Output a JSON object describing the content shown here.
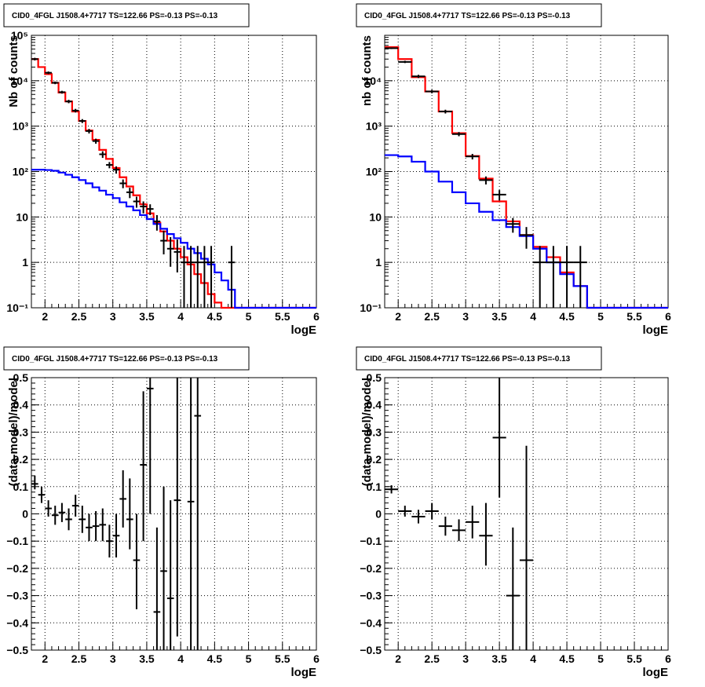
{
  "chart_data": [
    {
      "id": "tl",
      "type": "step",
      "title": "CID0_4FGL J1508.4+7717 TS=122.66 PS=-0.13 PS=-0.13",
      "xlabel": "logE",
      "ylabel": "Nb of counts",
      "xlim": [
        1.8,
        6.0
      ],
      "ylim": [
        0.1,
        100000
      ],
      "yscale": "log",
      "grid": true,
      "xticks": [
        "2",
        "2.5",
        "3",
        "3.5",
        "4",
        "4.5",
        "5",
        "5.5",
        "6"
      ],
      "yticks": [
        "10⁻¹",
        "1",
        "10",
        "10²",
        "10³",
        "10⁴",
        "10⁵"
      ],
      "bin_edges": [
        1.8,
        1.9,
        2.0,
        2.1,
        2.2,
        2.3,
        2.4,
        2.5,
        2.6,
        2.7,
        2.8,
        2.9,
        3.0,
        3.1,
        3.2,
        3.3,
        3.4,
        3.5,
        3.6,
        3.7,
        3.8,
        3.9,
        4.0,
        4.1,
        4.2,
        4.3,
        4.4,
        4.5,
        4.6,
        4.7,
        4.8,
        4.9,
        5.0,
        5.1,
        5.2,
        5.3,
        5.4,
        5.5,
        5.6,
        5.7,
        5.8,
        5.9,
        6.0
      ],
      "series": [
        {
          "color": "#ff0000",
          "values": [
            30000,
            20000,
            14000,
            9000,
            5500,
            3500,
            2100,
            1300,
            800,
            500,
            300,
            190,
            120,
            75,
            47,
            30,
            19,
            12,
            7.5,
            4.8,
            3.0,
            2.0,
            1.3,
            0.9,
            0.55,
            0.35,
            0.2,
            0.13,
            0.1,
            0.1,
            0.1,
            0.1,
            0.1,
            0.1,
            0.1,
            0.1,
            0.1,
            0.1,
            0.1,
            0.1,
            0.1,
            0.1
          ]
        },
        {
          "color": "#0000ff",
          "values": [
            110,
            110,
            108,
            104,
            95,
            85,
            75,
            65,
            55,
            45,
            38,
            31,
            26,
            21,
            17,
            14,
            11,
            9,
            7,
            5.5,
            4.2,
            3.4,
            2.7,
            2.0,
            1.6,
            1.2,
            0.9,
            0.6,
            0.4,
            0.25,
            0.1,
            0.1,
            0.1,
            0.1,
            0.1,
            0.1,
            0.1,
            0.1,
            0.1,
            0.1,
            0.1,
            0.1
          ]
        }
      ],
      "points": [
        {
          "x": 1.85,
          "y": 30000,
          "lo": 28000,
          "hi": 32000,
          "xerr": 0.05
        },
        {
          "x": 2.05,
          "y": 15000,
          "lo": 14000,
          "hi": 16000,
          "xerr": 0.05
        },
        {
          "x": 2.15,
          "y": 9000,
          "lo": 8400,
          "hi": 9600,
          "xerr": 0.05
        },
        {
          "x": 2.25,
          "y": 5600,
          "lo": 5200,
          "hi": 6000,
          "xerr": 0.05
        },
        {
          "x": 2.35,
          "y": 3500,
          "lo": 3200,
          "hi": 3800,
          "xerr": 0.05
        },
        {
          "x": 2.45,
          "y": 2200,
          "lo": 2000,
          "hi": 2400,
          "xerr": 0.05
        },
        {
          "x": 2.55,
          "y": 1300,
          "lo": 1170,
          "hi": 1430,
          "xerr": 0.05
        },
        {
          "x": 2.65,
          "y": 780,
          "lo": 690,
          "hi": 870,
          "xerr": 0.05
        },
        {
          "x": 2.75,
          "y": 470,
          "lo": 410,
          "hi": 530,
          "xerr": 0.05
        },
        {
          "x": 2.85,
          "y": 240,
          "lo": 200,
          "hi": 280,
          "xerr": 0.05
        },
        {
          "x": 2.95,
          "y": 140,
          "lo": 118,
          "hi": 162,
          "xerr": 0.05
        },
        {
          "x": 3.05,
          "y": 110,
          "lo": 90,
          "hi": 130,
          "xerr": 0.05
        },
        {
          "x": 3.15,
          "y": 55,
          "lo": 43,
          "hi": 67,
          "xerr": 0.05
        },
        {
          "x": 3.25,
          "y": 35,
          "lo": 26,
          "hi": 44,
          "xerr": 0.05
        },
        {
          "x": 3.35,
          "y": 22,
          "lo": 16,
          "hi": 28,
          "xerr": 0.05
        },
        {
          "x": 3.45,
          "y": 17,
          "lo": 12,
          "hi": 22,
          "xerr": 0.05
        },
        {
          "x": 3.55,
          "y": 15,
          "lo": 11,
          "hi": 19,
          "xerr": 0.05
        },
        {
          "x": 3.65,
          "y": 8,
          "lo": 5,
          "hi": 11,
          "xerr": 0.05
        },
        {
          "x": 3.75,
          "y": 3,
          "lo": 1.5,
          "hi": 5,
          "xerr": 0.05
        },
        {
          "x": 3.85,
          "y": 2,
          "lo": 0.8,
          "hi": 3.6,
          "xerr": 0.05
        },
        {
          "x": 3.95,
          "y": 1.7,
          "lo": 0.6,
          "hi": 3.2,
          "xerr": 0.05
        },
        {
          "x": 4.05,
          "y": 1,
          "lo": 0.1,
          "hi": 2.3,
          "xerr": 0.05
        },
        {
          "x": 4.15,
          "y": 1,
          "lo": 0.1,
          "hi": 2.3,
          "xerr": 0.05
        },
        {
          "x": 4.25,
          "y": 1,
          "lo": 0.1,
          "hi": 2.3,
          "xerr": 0.05
        },
        {
          "x": 4.35,
          "y": 1,
          "lo": 0.1,
          "hi": 2.3,
          "xerr": 0.05
        },
        {
          "x": 4.45,
          "y": 1,
          "lo": 0.1,
          "hi": 2.3,
          "xerr": 0.05
        },
        {
          "x": 4.75,
          "y": 1,
          "lo": 0.1,
          "hi": 2.3,
          "xerr": 0.05
        }
      ]
    },
    {
      "id": "tr",
      "type": "step",
      "title": "CID0_4FGL J1508.4+7717 TS=122.66 PS=-0.13 PS=-0.13",
      "xlabel": "logE",
      "ylabel": "nb of counts",
      "xlim": [
        1.8,
        6.0
      ],
      "ylim": [
        0.1,
        100000
      ],
      "yscale": "log",
      "grid": true,
      "xticks": [
        "2",
        "2.5",
        "3",
        "3.5",
        "4",
        "4.5",
        "5",
        "5.5",
        "6"
      ],
      "yticks": [
        "10⁻¹",
        "1",
        "10",
        "10²",
        "10³",
        "10⁴"
      ],
      "bin_edges": [
        1.8,
        2.0,
        2.2,
        2.4,
        2.6,
        2.8,
        3.0,
        3.2,
        3.4,
        3.6,
        3.8,
        4.0,
        4.2,
        4.4,
        4.6,
        4.8,
        5.0,
        5.2,
        5.4,
        5.6,
        5.8,
        6.0
      ],
      "series": [
        {
          "color": "#ff0000",
          "values": [
            55000,
            30000,
            12000,
            5800,
            2100,
            700,
            220,
            70,
            22,
            8,
            4,
            2.2,
            1.3,
            0.6,
            0.3,
            0.1,
            0.1,
            0.1,
            0.1,
            0.1,
            0.1
          ]
        },
        {
          "color": "#0000ff",
          "values": [
            230,
            215,
            165,
            100,
            60,
            35,
            20,
            13,
            8.5,
            6,
            3.8,
            2.0,
            1.0,
            0.55,
            0.3,
            0.1,
            0.1,
            0.1,
            0.1,
            0.1,
            0.1
          ]
        }
      ],
      "points": [
        {
          "x": 1.9,
          "y": 52000,
          "lo": 50000,
          "hi": 54000,
          "xerr": 0.1
        },
        {
          "x": 2.1,
          "y": 26000,
          "lo": 24500,
          "hi": 27500,
          "xerr": 0.1
        },
        {
          "x": 2.3,
          "y": 12500,
          "lo": 11500,
          "hi": 13500,
          "xerr": 0.1
        },
        {
          "x": 2.5,
          "y": 5800,
          "lo": 5300,
          "hi": 6300,
          "xerr": 0.1
        },
        {
          "x": 2.7,
          "y": 2100,
          "lo": 1900,
          "hi": 2300,
          "xerr": 0.1
        },
        {
          "x": 2.9,
          "y": 670,
          "lo": 600,
          "hi": 740,
          "xerr": 0.1
        },
        {
          "x": 3.1,
          "y": 215,
          "lo": 185,
          "hi": 245,
          "xerr": 0.1
        },
        {
          "x": 3.3,
          "y": 65,
          "lo": 52,
          "hi": 78,
          "xerr": 0.1
        },
        {
          "x": 3.5,
          "y": 31,
          "lo": 23,
          "hi": 39,
          "xerr": 0.1
        },
        {
          "x": 3.7,
          "y": 7,
          "lo": 4.5,
          "hi": 9.5,
          "xerr": 0.1
        },
        {
          "x": 3.9,
          "y": 4,
          "lo": 2,
          "hi": 6,
          "xerr": 0.1
        },
        {
          "x": 4.1,
          "y": 1,
          "lo": 0.1,
          "hi": 2.3,
          "xerr": 0.1
        },
        {
          "x": 4.3,
          "y": 1,
          "lo": 0.1,
          "hi": 2.3,
          "xerr": 0.1
        },
        {
          "x": 4.5,
          "y": 1,
          "lo": 0.1,
          "hi": 2.3,
          "xerr": 0.1
        },
        {
          "x": 4.7,
          "y": 1,
          "lo": 0.1,
          "hi": 2.3,
          "xerr": 0.1
        }
      ]
    },
    {
      "id": "bl",
      "type": "errorbar",
      "title": "CID0_4FGL J1508.4+7717 TS=122.66 PS=-0.13 PS=-0.13",
      "xlabel": "logE",
      "ylabel": "(data-model)/model",
      "xlim": [
        1.8,
        6.0
      ],
      "ylim": [
        -0.5,
        0.5
      ],
      "yscale": "linear",
      "grid": true,
      "xticks": [
        "2",
        "2.5",
        "3",
        "3.5",
        "4",
        "4.5",
        "5",
        "5.5",
        "6"
      ],
      "yticks": [
        "−0.5",
        "−0.4",
        "−0.3",
        "−0.2",
        "−0.1",
        "0",
        "0.1",
        "0.2",
        "0.3",
        "0.4",
        "0.5"
      ],
      "points": [
        {
          "x": 1.85,
          "y": 0.11,
          "lo": 0.09,
          "hi": 0.14,
          "xerr": 0.05
        },
        {
          "x": 1.95,
          "y": 0.07,
          "lo": 0.04,
          "hi": 0.1,
          "xerr": 0.05
        },
        {
          "x": 2.05,
          "y": 0.02,
          "lo": -0.01,
          "hi": 0.05,
          "xerr": 0.05
        },
        {
          "x": 2.15,
          "y": -0.005,
          "lo": -0.04,
          "hi": 0.03,
          "xerr": 0.05
        },
        {
          "x": 2.25,
          "y": 0.005,
          "lo": -0.03,
          "hi": 0.04,
          "xerr": 0.05
        },
        {
          "x": 2.35,
          "y": -0.02,
          "lo": -0.06,
          "hi": 0.02,
          "xerr": 0.05
        },
        {
          "x": 2.45,
          "y": 0.03,
          "lo": -0.01,
          "hi": 0.07,
          "xerr": 0.05
        },
        {
          "x": 2.55,
          "y": -0.02,
          "lo": -0.07,
          "hi": 0.03,
          "xerr": 0.05
        },
        {
          "x": 2.65,
          "y": -0.05,
          "lo": -0.1,
          "hi": 0.0,
          "xerr": 0.05
        },
        {
          "x": 2.75,
          "y": -0.045,
          "lo": -0.1,
          "hi": 0.01,
          "xerr": 0.05
        },
        {
          "x": 2.85,
          "y": -0.04,
          "lo": -0.1,
          "hi": 0.02,
          "xerr": 0.05
        },
        {
          "x": 2.95,
          "y": -0.1,
          "lo": -0.16,
          "hi": -0.04,
          "xerr": 0.05
        },
        {
          "x": 3.05,
          "y": -0.08,
          "lo": -0.16,
          "hi": 0.0,
          "xerr": 0.05
        },
        {
          "x": 3.15,
          "y": 0.055,
          "lo": -0.05,
          "hi": 0.16,
          "xerr": 0.05
        },
        {
          "x": 3.25,
          "y": -0.02,
          "lo": -0.13,
          "hi": 0.13,
          "xerr": 0.05
        },
        {
          "x": 3.35,
          "y": -0.17,
          "lo": -0.35,
          "hi": 0.0,
          "xerr": 0.05
        },
        {
          "x": 3.45,
          "y": 0.18,
          "lo": -0.1,
          "hi": 0.45,
          "xerr": 0.05
        },
        {
          "x": 3.55,
          "y": 0.46,
          "lo": 0.0,
          "hi": 0.5,
          "xerr": 0.05
        },
        {
          "x": 3.65,
          "y": -0.36,
          "lo": -0.5,
          "hi": -0.05,
          "xerr": 0.05
        },
        {
          "x": 3.75,
          "y": -0.21,
          "lo": -0.5,
          "hi": 0.1,
          "xerr": 0.05
        },
        {
          "x": 3.85,
          "y": -0.31,
          "lo": -0.5,
          "hi": 0.05,
          "xerr": 0.05
        },
        {
          "x": 3.95,
          "y": 0.05,
          "lo": -0.45,
          "hi": 0.5,
          "xerr": 0.05
        },
        {
          "x": 4.15,
          "y": 0.045,
          "lo": -0.5,
          "hi": 0.5,
          "xerr": 0.05
        },
        {
          "x": 4.25,
          "y": 0.36,
          "lo": -0.5,
          "hi": 0.5,
          "xerr": 0.05
        }
      ]
    },
    {
      "id": "br",
      "type": "errorbar",
      "title": "CID0_4FGL J1508.4+7717 TS=122.66 PS=-0.13 PS=-0.13",
      "xlabel": "logE",
      "ylabel": "(data-model)/model",
      "xlim": [
        1.8,
        6.0
      ],
      "ylim": [
        -0.5,
        0.5
      ],
      "yscale": "linear",
      "grid": true,
      "xticks": [
        "2",
        "2.5",
        "3",
        "3.5",
        "4",
        "4.5",
        "5",
        "5.5",
        "6"
      ],
      "yticks": [
        "−0.5",
        "−0.4",
        "−0.3",
        "−0.2",
        "−0.1",
        "0",
        "0.1",
        "0.2",
        "0.3",
        "0.4",
        "0.5"
      ],
      "points": [
        {
          "x": 1.9,
          "y": 0.09,
          "lo": 0.075,
          "hi": 0.105,
          "xerr": 0.1
        },
        {
          "x": 2.1,
          "y": 0.01,
          "lo": -0.01,
          "hi": 0.03,
          "xerr": 0.1
        },
        {
          "x": 2.3,
          "y": -0.01,
          "lo": -0.035,
          "hi": 0.015,
          "xerr": 0.1
        },
        {
          "x": 2.5,
          "y": 0.01,
          "lo": -0.02,
          "hi": 0.04,
          "xerr": 0.1
        },
        {
          "x": 2.7,
          "y": -0.045,
          "lo": -0.08,
          "hi": -0.01,
          "xerr": 0.1
        },
        {
          "x": 2.9,
          "y": -0.06,
          "lo": -0.1,
          "hi": -0.02,
          "xerr": 0.1
        },
        {
          "x": 3.1,
          "y": -0.03,
          "lo": -0.09,
          "hi": 0.03,
          "xerr": 0.1
        },
        {
          "x": 3.3,
          "y": -0.08,
          "lo": -0.19,
          "hi": 0.04,
          "xerr": 0.1
        },
        {
          "x": 3.5,
          "y": 0.28,
          "lo": 0.06,
          "hi": 0.5,
          "xerr": 0.1
        },
        {
          "x": 3.7,
          "y": -0.3,
          "lo": -0.5,
          "hi": -0.05,
          "xerr": 0.1
        },
        {
          "x": 3.9,
          "y": -0.17,
          "lo": -0.5,
          "hi": 0.25,
          "xerr": 0.1
        }
      ]
    }
  ]
}
